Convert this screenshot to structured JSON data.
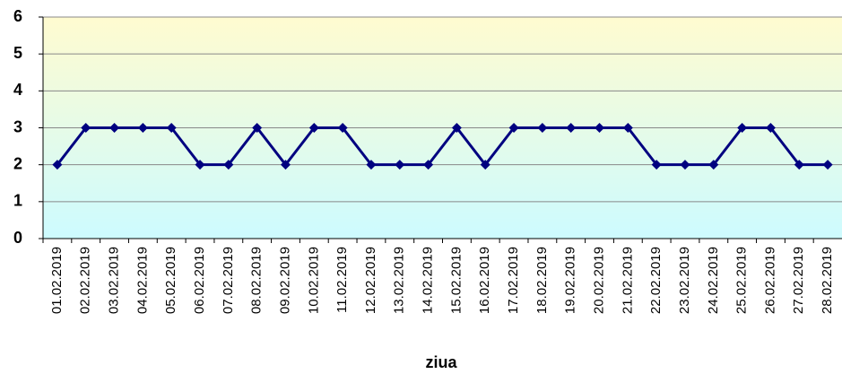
{
  "chart_data": {
    "type": "line",
    "x_label": "ziua",
    "categories": [
      "01.02.2019",
      "02.02.2019",
      "03.02.2019",
      "04.02.2019",
      "05.02.2019",
      "06.02.2019",
      "07.02.2019",
      "08.02.2019",
      "09.02.2019",
      "10.02.2019",
      "11.02.2019",
      "12.02.2019",
      "13.02.2019",
      "14.02.2019",
      "15.02.2019",
      "16.02.2019",
      "17.02.2019",
      "18.02.2019",
      "19.02.2019",
      "20.02.2019",
      "21.02.2019",
      "22.02.2019",
      "23.02.2019",
      "24.02.2019",
      "25.02.2019",
      "26.02.2019",
      "27.02.2019",
      "28.02.2019"
    ],
    "values": [
      2,
      3,
      3,
      3,
      3,
      2,
      2,
      3,
      2,
      3,
      3,
      2,
      2,
      2,
      3,
      2,
      3,
      3,
      3,
      3,
      3,
      2,
      2,
      2,
      3,
      3,
      2,
      2
    ],
    "color": "#000080",
    "ylim": [
      0,
      6
    ],
    "yticks": [
      0,
      1,
      2,
      3,
      4,
      5,
      6
    ],
    "grid": true
  }
}
